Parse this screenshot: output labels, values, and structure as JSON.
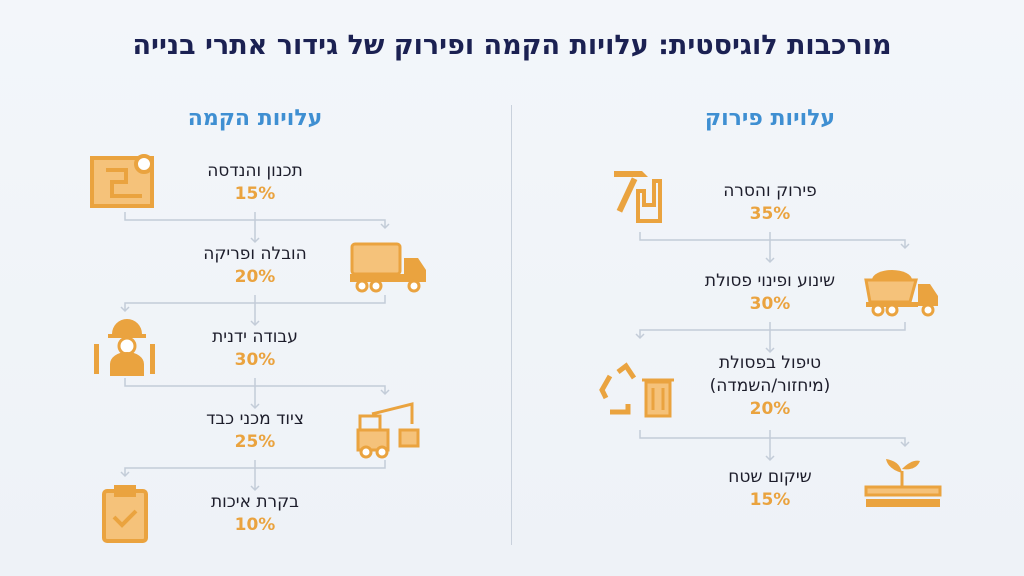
{
  "title": "מורכבות לוגיסטית: עלויות הקמה ופירוק של גידור אתרי בנייה",
  "installation": {
    "heading": "עלויות הקמה",
    "items": [
      {
        "label": "תכנון והנדסה",
        "percent": "15%",
        "icon": "blueprint-gear-icon"
      },
      {
        "label": "הובלה ופריקה",
        "percent": "20%",
        "icon": "fence-truck-icon"
      },
      {
        "label": "עבודה ידנית",
        "percent": "30%",
        "icon": "worker-tools-icon"
      },
      {
        "label": "ציוד מכני כבד",
        "percent": "25%",
        "icon": "forklift-icon"
      },
      {
        "label": "בקרת איכות",
        "percent": "10%",
        "icon": "clipboard-check-icon"
      }
    ]
  },
  "removal": {
    "heading": "עלויות פירוק",
    "items": [
      {
        "label": "פירוק והסרה",
        "percent": "35%",
        "icon": "hammer-fence-icon"
      },
      {
        "label": "שינוע ופינוי פסולת",
        "percent": "30%",
        "icon": "dump-truck-icon"
      },
      {
        "label": "טיפול בפסולת\n(מיחזור/השמדה)",
        "percent": "20%",
        "icon": "recycle-bin-icon"
      },
      {
        "label": "שיקום שטח",
        "percent": "15%",
        "icon": "sprout-icon"
      }
    ]
  },
  "colors": {
    "title": "#1b2152",
    "heading": "#3f8fd2",
    "accent": "#eaa33f"
  }
}
